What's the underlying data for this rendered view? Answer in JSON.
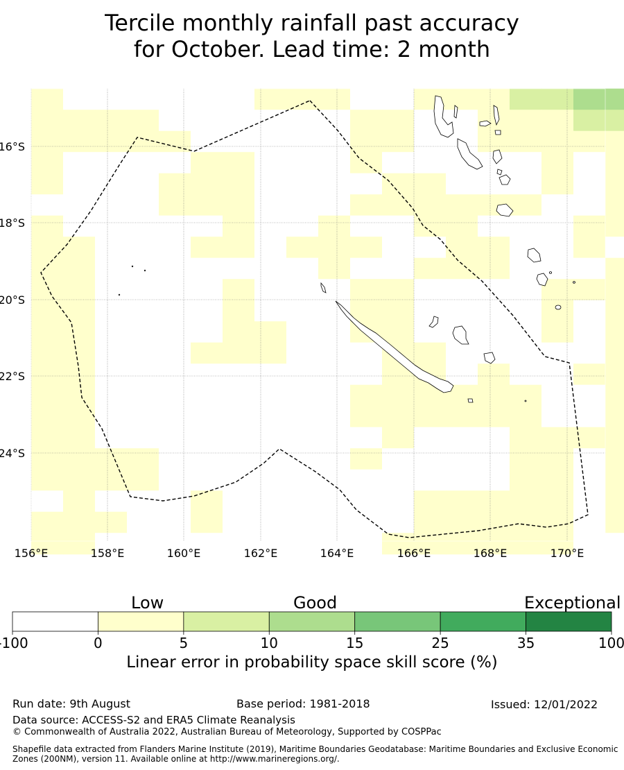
{
  "title": {
    "line1": "Tercile monthly rainfall past accuracy",
    "line2": "for October. Lead time: 2 month"
  },
  "map": {
    "lon_range": [
      156,
      171
    ],
    "lat_range": [
      -26.2,
      -14.4
    ],
    "lon_ticks": [
      "156°E",
      "158°E",
      "160°E",
      "162°E",
      "164°E",
      "166°E",
      "168°E",
      "170°E"
    ],
    "lat_ticks": [
      "16°S",
      "18°S",
      "20°S",
      "22°S",
      "24°S"
    ],
    "grid": true,
    "boundary_style": "dashed",
    "colors": {
      "neg": "#ffffff",
      "c0": "#ffffcc",
      "c1": "#d9f0a3",
      "c2": "#addd8e",
      "c3": "#78c679",
      "c4": "#41ab5d",
      "c5": "#238443"
    },
    "rows": [
      "1000000111001112233M",
      "1111000000110011122M",
      "1111100000110011111M",
      "1000011000100000101M",
      "1000111000011000101M",
      "0000111000111111001M",
      "1000001001001100011M",
      "1100011011100110010M",
      "1100000001001110001M",
      "1100001000110000111M",
      "1100001000110000101M",
      "1100001100110000101M",
      "1100011100011000001M",
      "1100000000011010011M",
      "1100000000111111001M",
      "1100000000111111001M",
      "1100000000010001111M",
      "1111000000100001101M",
      "1111000000000001101M",
      "0100010000001111101M",
      "1110010000001111101M",
      "1100000000011111100M"
    ]
  },
  "colorbar": {
    "categories": [
      "Low",
      "Good",
      "Exceptional"
    ],
    "ticks": [
      "-100",
      "0",
      "5",
      "10",
      "15",
      "25",
      "35",
      "100"
    ],
    "label": "Linear error in probability space skill score (%)"
  },
  "footer": {
    "run_date": "Run date: 9th August",
    "base_period": "Base period: 1981-2018",
    "issued": "Issued: 12/01/2022",
    "data_source": "Data source: ACCESS-S2 and ERA5 Climate Reanalysis",
    "copyright": "© Commonwealth of Australia 2022, Australian Bureau of Meteorology, Supported by COSPPac",
    "shapefile": "Shapefile data extracted from Flanders Marine Institute (2019), Maritime Boundaries Geodatabase: Maritime Boundaries and Exclusive Economic Zones (200NM), version 11. Available online at http://www.marineregions.org/."
  }
}
